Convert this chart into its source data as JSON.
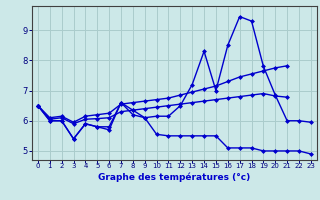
{
  "title": "Graphe des températures (°c)",
  "hours": [
    0,
    1,
    2,
    3,
    4,
    5,
    6,
    7,
    8,
    9,
    10,
    11,
    12,
    13,
    14,
    15,
    16,
    17,
    18,
    19,
    20,
    21,
    22,
    23
  ],
  "line_zigzag": [
    6.5,
    6.0,
    6.0,
    5.4,
    5.9,
    5.8,
    5.8,
    6.6,
    6.35,
    6.1,
    6.15,
    6.15,
    6.5,
    7.2,
    8.3,
    7.0,
    8.5,
    9.45,
    9.3,
    7.8,
    6.85,
    6.0,
    6.0,
    5.95
  ],
  "line_top": [
    6.5,
    6.1,
    6.15,
    5.95,
    6.15,
    6.2,
    6.25,
    6.55,
    6.6,
    6.65,
    6.7,
    6.75,
    6.85,
    6.95,
    7.05,
    7.15,
    7.3,
    7.45,
    7.55,
    7.65,
    7.75,
    7.82,
    null,
    null
  ],
  "line_mid": [
    6.5,
    6.05,
    6.1,
    5.9,
    6.05,
    6.07,
    6.1,
    6.3,
    6.35,
    6.4,
    6.45,
    6.5,
    6.55,
    6.6,
    6.65,
    6.7,
    6.75,
    6.8,
    6.85,
    6.9,
    6.82,
    6.78,
    null,
    null
  ],
  "line_bottom": [
    6.5,
    6.0,
    6.0,
    5.4,
    5.9,
    5.8,
    5.7,
    6.6,
    6.2,
    6.1,
    5.55,
    5.5,
    5.5,
    5.5,
    5.5,
    5.5,
    5.1,
    5.1,
    5.1,
    5.0,
    5.0,
    5.0,
    5.0,
    4.9
  ],
  "xlim": [
    -0.5,
    23.5
  ],
  "ylim": [
    4.7,
    9.8
  ],
  "yticks": [
    5,
    6,
    7,
    8,
    9
  ],
  "xticks": [
    0,
    1,
    2,
    3,
    4,
    5,
    6,
    7,
    8,
    9,
    10,
    11,
    12,
    13,
    14,
    15,
    16,
    17,
    18,
    19,
    20,
    21,
    22,
    23
  ],
  "line_color": "#0000cd",
  "bg_color": "#cce8e8",
  "grid_color": "#aacccc",
  "axis_color": "#404040",
  "label_color": "#0000cd",
  "tick_color": "#000080"
}
